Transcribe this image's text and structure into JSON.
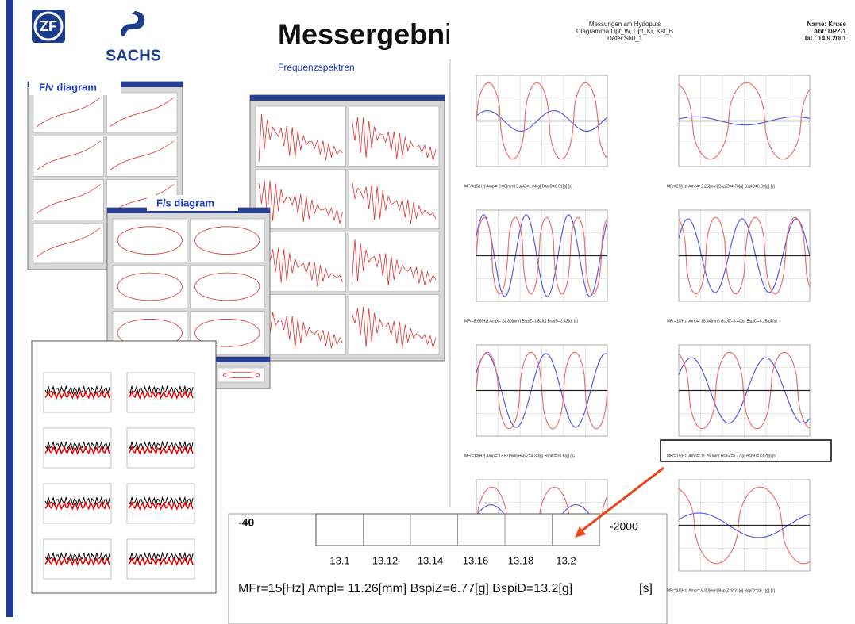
{
  "header": {
    "logo_zf": "ZF",
    "logo_sachs": "SACHS",
    "title": "Messergebnisse",
    "subtitle": "Frequenzspektren"
  },
  "thumbnails": {
    "fv_label": "F/v diagram",
    "fs_label": "F/s diagram"
  },
  "report": {
    "title_lines": [
      "Messungen am Hydopuls",
      "Diagramma Dpf_W, Dpf_Kr, Kst_B",
      "Datei:S60_1"
    ],
    "info_lines": [
      "Name: Kruse",
      "Abt: DPZ-1",
      "Dat.: 14.9.2001"
    ],
    "captions": [
      "MFr=15[Hz] Ampl= 2.00[mm] BspiZ=1.04[g] BspiD=2.01[g]   [s]",
      "MFr=25[Hz] Ampl= 2.25[mm] BspiZ=4.70[g] BspiD=8.00[g]   [s]",
      "MFr=8.66[Hz] Ampl= 24.80[mm] BspiZ=1.82[g] BspiD=2.42[g]   [s]",
      "MFr=10[Hz] Ampl= 16.44[mm] BspiZ=3.40[g] BspiD=6.25[g]   [s]",
      "MFr=10[Hz] Ampl= 13.87[mm] BspiZ=4.30[g] BspiD=10.6[g]   [s]",
      "MFr=15[Hz] Ampl= 11.26[mm] BspiZ=6.77[g] BspiD=13.2[g]   [s]",
      "MFr=25[Hz] Ampl= 6.80[mm] BspiZ=8.31[g] BspiD=20.4[g]   [s]"
    ]
  },
  "zoom": {
    "y_left": "-40",
    "y_right": "-2000",
    "x_ticks": [
      "13.1",
      "13.12",
      "13.14",
      "13.16",
      "13.18",
      "13.2"
    ],
    "caption": "MFr=15[Hz] Ampl= 11.26[mm] BspiZ=6.77[g] BspiD=13.2[g]",
    "unit": "[s]"
  }
}
